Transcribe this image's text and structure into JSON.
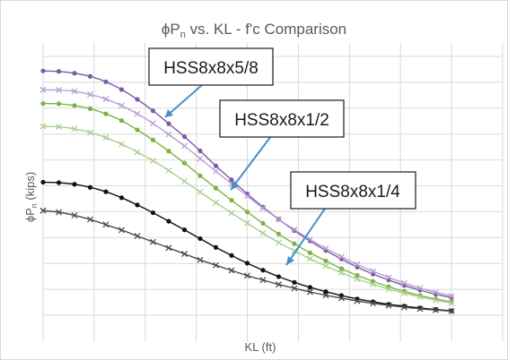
{
  "chart_data": {
    "type": "line",
    "title": {
      "main": "ϕP",
      "sub": "n",
      "rest": " vs. KL - f'c Comparison"
    },
    "xlabel": "KL (ft)",
    "ylabel": {
      "main": "ϕP",
      "sub": "n",
      "rest": " (kips)"
    },
    "grid": true,
    "xlim": [
      0,
      1
    ],
    "ylim": [
      0,
      1
    ],
    "x": [
      0.0,
      0.0385,
      0.0769,
      0.1154,
      0.1538,
      0.1923,
      0.2308,
      0.2692,
      0.3077,
      0.3462,
      0.3846,
      0.4231,
      0.4615,
      0.5,
      0.5385,
      0.5769,
      0.6154,
      0.6538,
      0.6923,
      0.7308,
      0.7692,
      0.8077,
      0.8462,
      0.8846,
      0.9231,
      0.9615,
      1.0
    ],
    "series": [
      {
        "color": "#7b5ba6",
        "marker": "dot",
        "values": [
          0.944,
          0.942,
          0.935,
          0.923,
          0.902,
          0.872,
          0.834,
          0.79,
          0.74,
          0.69,
          0.635,
          0.577,
          0.523,
          0.469,
          0.418,
          0.371,
          0.327,
          0.287,
          0.25,
          0.217,
          0.186,
          0.159,
          0.136,
          0.115,
          0.097,
          0.081,
          0.068
        ]
      },
      {
        "color": "#b89ed1",
        "marker": "x",
        "values": [
          0.871,
          0.87,
          0.865,
          0.853,
          0.835,
          0.81,
          0.778,
          0.741,
          0.699,
          0.654,
          0.605,
          0.556,
          0.508,
          0.461,
          0.414,
          0.371,
          0.331,
          0.293,
          0.258,
          0.226,
          0.196,
          0.17,
          0.146,
          0.124,
          0.105,
          0.089,
          0.074
        ]
      },
      {
        "color": "#7db342",
        "marker": "dot",
        "values": [
          0.818,
          0.817,
          0.81,
          0.798,
          0.778,
          0.752,
          0.716,
          0.677,
          0.634,
          0.588,
          0.539,
          0.491,
          0.444,
          0.399,
          0.355,
          0.314,
          0.276,
          0.241,
          0.21,
          0.18,
          0.154,
          0.131,
          0.11,
          0.092,
          0.076,
          0.063,
          0.051
        ]
      },
      {
        "color": "#a9d08e",
        "marker": "x",
        "values": [
          0.73,
          0.728,
          0.72,
          0.706,
          0.686,
          0.661,
          0.63,
          0.597,
          0.559,
          0.518,
          0.476,
          0.435,
          0.395,
          0.356,
          0.317,
          0.281,
          0.249,
          0.218,
          0.19,
          0.164,
          0.14,
          0.12,
          0.101,
          0.085,
          0.071,
          0.058,
          0.047
        ]
      },
      {
        "color": "#111111",
        "marker": "dot",
        "values": [
          0.514,
          0.512,
          0.506,
          0.494,
          0.477,
          0.454,
          0.426,
          0.396,
          0.363,
          0.33,
          0.296,
          0.262,
          0.231,
          0.201,
          0.174,
          0.149,
          0.127,
          0.108,
          0.091,
          0.076,
          0.063,
          0.052,
          0.042,
          0.035,
          0.028,
          0.022,
          0.017
        ]
      },
      {
        "color": "#4a4a4a",
        "marker": "x",
        "values": [
          0.404,
          0.398,
          0.386,
          0.37,
          0.35,
          0.329,
          0.306,
          0.283,
          0.26,
          0.237,
          0.214,
          0.193,
          0.173,
          0.153,
          0.136,
          0.119,
          0.104,
          0.09,
          0.077,
          0.066,
          0.055,
          0.046,
          0.038,
          0.031,
          0.025,
          0.02,
          0.016
        ]
      }
    ],
    "annotations": [
      {
        "label": "HSS8x8x5/8"
      },
      {
        "label": "HSS8x8x1/2"
      },
      {
        "label": "HSS8x8x1/4"
      }
    ]
  }
}
